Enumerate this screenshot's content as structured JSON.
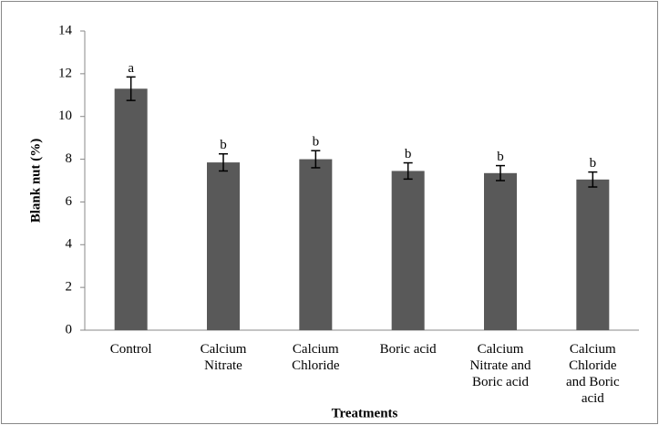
{
  "chart_data": {
    "type": "bar",
    "categories": [
      "Control",
      "Calcium Nitrate",
      "Calcium Chloride",
      "Boric acid",
      "Calcium Nitrate and Boric acid",
      "Calcium Chloride and Boric acid"
    ],
    "values": [
      11.3,
      7.85,
      8.0,
      7.45,
      7.35,
      7.05
    ],
    "errors": [
      0.55,
      0.4,
      0.4,
      0.38,
      0.35,
      0.35
    ],
    "annotations": [
      "a",
      "b",
      "b",
      "b",
      "b",
      "b"
    ],
    "color": "#595959",
    "xlabel": "Treatments",
    "ylabel": "Blank nut  (%)",
    "ylim": [
      0,
      14
    ],
    "yticks": [
      0,
      2,
      4,
      6,
      8,
      10,
      12,
      14
    ],
    "grid": false
  }
}
